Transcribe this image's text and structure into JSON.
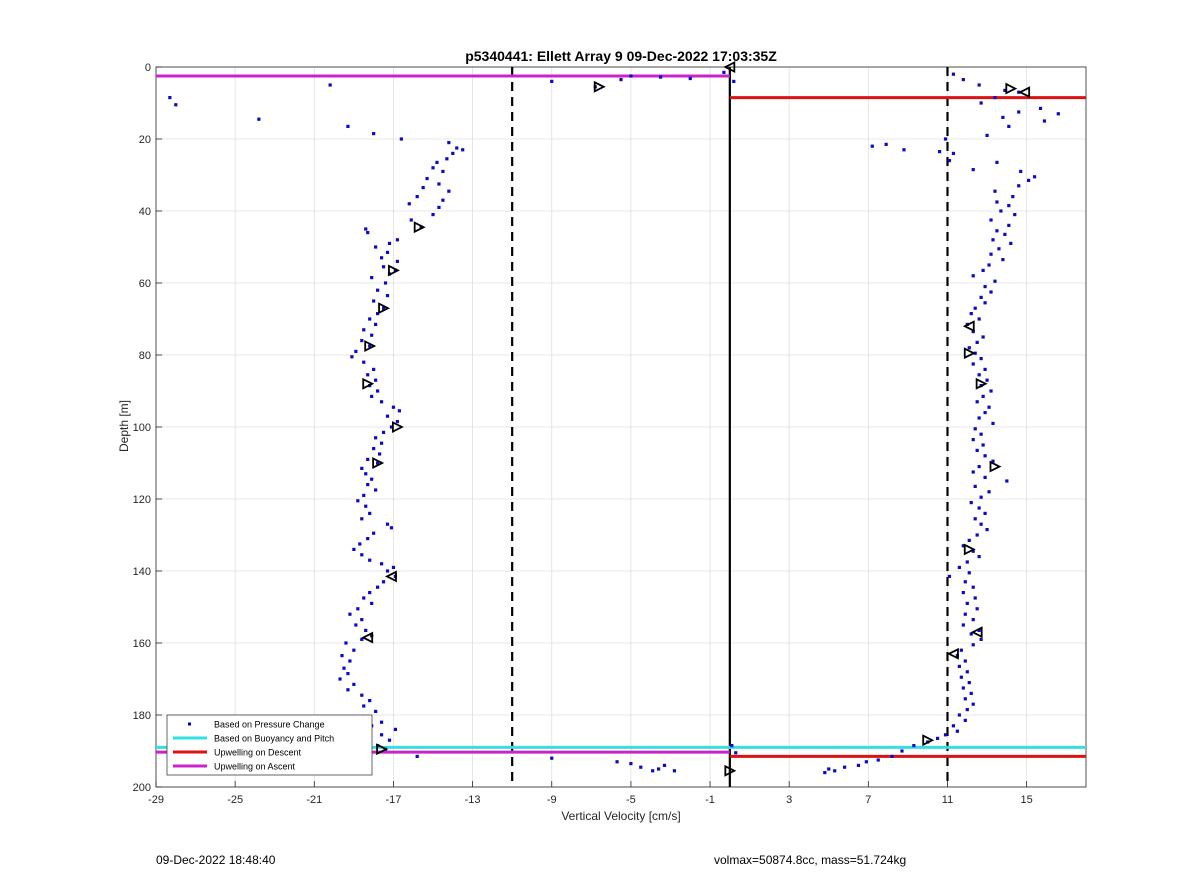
{
  "footer": {
    "timestamp": "09-Dec-2022 18:48:40",
    "info": "volmax=50874.8cc, mass=51.724kg"
  },
  "chart_data": {
    "type": "scatter",
    "title": "p5340441: Ellett Array 9 09-Dec-2022 17:03:35Z",
    "xlabel": "Vertical Velocity [cm/s]",
    "ylabel": "Depth [m]",
    "xlim": [
      -29,
      18
    ],
    "ylim": [
      0,
      200
    ],
    "y_reversed": true,
    "grid": true,
    "xticks": [
      -29,
      -25,
      -21,
      -17,
      -13,
      -9,
      -5,
      -1,
      3,
      7,
      11,
      15
    ],
    "yticks": [
      0,
      20,
      40,
      60,
      80,
      100,
      120,
      140,
      160,
      180,
      200
    ],
    "legend_position": "bottom-left",
    "legend": [
      {
        "label": "Based on Pressure Change",
        "color": "#0000cc",
        "style": "dot"
      },
      {
        "label": "Based on Buoyancy and Pitch",
        "color": "#33e0e0",
        "style": "line"
      },
      {
        "label": "Upwelling on Descent",
        "color": "#dd1111",
        "style": "line"
      },
      {
        "label": "Upwelling on Ascent",
        "color": "#cc22cc",
        "style": "line"
      }
    ],
    "vertical_lines": [
      {
        "x": 0,
        "style": "solid",
        "color": "#000000"
      },
      {
        "x": -11,
        "style": "dashed",
        "color": "#000000"
      },
      {
        "x": 11,
        "style": "dashed",
        "color": "#000000"
      }
    ],
    "horizontal_segments": [
      {
        "series": "Upwelling on Ascent",
        "y": 2.5,
        "x1": -29,
        "x2": 0,
        "color": "#cc22cc"
      },
      {
        "series": "Upwelling on Descent",
        "y": 8.5,
        "x1": 0,
        "x2": 18,
        "color": "#dd1111"
      },
      {
        "series": "Based on Buoyancy and Pitch",
        "y": 189,
        "x1": -29,
        "x2": 18,
        "color": "#33e0e0"
      },
      {
        "series": "Upwelling on Ascent",
        "y": 190.3,
        "x1": -29,
        "x2": 0,
        "color": "#cc22cc"
      },
      {
        "series": "Upwelling on Descent",
        "y": 191.5,
        "x1": 0,
        "x2": 18,
        "color": "#dd1111"
      }
    ],
    "ascent_points": [
      [
        -28.3,
        8.5
      ],
      [
        -28,
        10.5
      ],
      [
        -23.8,
        14.5
      ],
      [
        -20.2,
        5
      ],
      [
        -19.3,
        16.5
      ],
      [
        -18,
        18.5
      ],
      [
        -16.6,
        20
      ],
      [
        -9,
        4
      ],
      [
        -6.8,
        5.5
      ],
      [
        -5.5,
        3.5
      ],
      [
        -5,
        2.5
      ],
      [
        -3.5,
        2.8
      ],
      [
        -2,
        3.2
      ],
      [
        -0.3,
        1.5
      ],
      [
        -14.2,
        21
      ],
      [
        -13.8,
        22.5
      ],
      [
        -13.5,
        23
      ],
      [
        -14,
        24
      ],
      [
        -14.3,
        25.5
      ],
      [
        -14.8,
        26.5
      ],
      [
        -15,
        28
      ],
      [
        -14.5,
        29
      ],
      [
        -15.3,
        31
      ],
      [
        -14.7,
        32.5
      ],
      [
        -15.5,
        33.5
      ],
      [
        -14.2,
        34.5
      ],
      [
        -15.8,
        36
      ],
      [
        -14.5,
        37
      ],
      [
        -16.2,
        38
      ],
      [
        -14.7,
        39
      ],
      [
        -15,
        41
      ],
      [
        -16.1,
        42.5
      ],
      [
        -15.6,
        44.5
      ],
      [
        -18.4,
        45
      ],
      [
        -18.3,
        46
      ],
      [
        -16.8,
        48
      ],
      [
        -17.2,
        49
      ],
      [
        -17.9,
        50
      ],
      [
        -17.3,
        51.5
      ],
      [
        -17.6,
        53
      ],
      [
        -16.8,
        54
      ],
      [
        -17.5,
        55.5
      ],
      [
        -16.9,
        56.5
      ],
      [
        -17.2,
        57.5
      ],
      [
        -18.1,
        58.5
      ],
      [
        -17.4,
        60
      ],
      [
        -17.8,
        62
      ],
      [
        -17.3,
        63.5
      ],
      [
        -18,
        65
      ],
      [
        -17.5,
        67
      ],
      [
        -17.8,
        68.5
      ],
      [
        -18.2,
        70
      ],
      [
        -17.9,
        71.5
      ],
      [
        -18.5,
        73
      ],
      [
        -18.1,
        74.5
      ],
      [
        -18.6,
        76
      ],
      [
        -18.2,
        77.5
      ],
      [
        -18.9,
        79
      ],
      [
        -19.1,
        80.5
      ],
      [
        -18.5,
        82
      ],
      [
        -18,
        84
      ],
      [
        -18.3,
        85.5
      ],
      [
        -17.9,
        87
      ],
      [
        -18.2,
        88.5
      ],
      [
        -17.8,
        90
      ],
      [
        -18.1,
        91.5
      ],
      [
        -17.6,
        93
      ],
      [
        -17,
        94.5
      ],
      [
        -16.7,
        95.5
      ],
      [
        -17.3,
        97
      ],
      [
        -16.8,
        98.5
      ],
      [
        -17.1,
        100
      ],
      [
        -17.5,
        101.5
      ],
      [
        -17.9,
        103
      ],
      [
        -17.6,
        104.5
      ],
      [
        -18,
        106
      ],
      [
        -17.7,
        107.5
      ],
      [
        -18.3,
        109
      ],
      [
        -17.8,
        110
      ],
      [
        -18.6,
        111.5
      ],
      [
        -18.4,
        113
      ],
      [
        -18.1,
        114.5
      ],
      [
        -18.3,
        116
      ],
      [
        -17.9,
        117.5
      ],
      [
        -18.5,
        119
      ],
      [
        -18.8,
        120.5
      ],
      [
        -18.4,
        122
      ],
      [
        -18.2,
        124
      ],
      [
        -18.6,
        125.5
      ],
      [
        -17.3,
        127
      ],
      [
        -17.1,
        128
      ],
      [
        -18,
        129.5
      ],
      [
        -18.3,
        131
      ],
      [
        -18.7,
        132.5
      ],
      [
        -19,
        134
      ],
      [
        -18.6,
        135.5
      ],
      [
        -18.2,
        137
      ],
      [
        -17.6,
        138
      ],
      [
        -17,
        139
      ],
      [
        -17.3,
        140
      ],
      [
        -16.9,
        141.5
      ],
      [
        -17.5,
        143
      ],
      [
        -17.8,
        144.5
      ],
      [
        -18.2,
        146
      ],
      [
        -18.5,
        147.5
      ],
      [
        -18.1,
        149
      ],
      [
        -18.8,
        150.5
      ],
      [
        -19.2,
        152
      ],
      [
        -18.6,
        153.5
      ],
      [
        -18.9,
        155
      ],
      [
        -18.4,
        156.5
      ],
      [
        -18.1,
        158
      ],
      [
        -18.6,
        159
      ],
      [
        -19.4,
        160
      ],
      [
        -19,
        162
      ],
      [
        -19.6,
        163.5
      ],
      [
        -19.2,
        165
      ],
      [
        -19.5,
        167
      ],
      [
        -19.3,
        168.5
      ],
      [
        -19.7,
        170
      ],
      [
        -19,
        171.5
      ],
      [
        -19.3,
        173
      ],
      [
        -18.6,
        174.5
      ],
      [
        -18.2,
        176
      ],
      [
        -18.5,
        177.5
      ],
      [
        -17.9,
        179
      ],
      [
        -18.2,
        180.5
      ],
      [
        -17.6,
        182
      ],
      [
        -18.1,
        183
      ],
      [
        -16.9,
        184
      ],
      [
        -17.6,
        185.5
      ],
      [
        -17.2,
        187
      ],
      [
        -17.8,
        188.5
      ],
      [
        -17.4,
        189.5
      ],
      [
        -15.8,
        191.5
      ],
      [
        -9,
        192
      ],
      [
        -5.7,
        193
      ],
      [
        -5,
        193.5
      ],
      [
        -4.5,
        194.5
      ],
      [
        -3.6,
        195
      ],
      [
        -3.9,
        195.5
      ],
      [
        -2.8,
        195.5
      ],
      [
        -3.3,
        194
      ]
    ],
    "descent_points": [
      [
        11.3,
        2
      ],
      [
        11.8,
        3.5
      ],
      [
        12.6,
        5
      ],
      [
        13.9,
        6.5
      ],
      [
        14.6,
        7
      ],
      [
        13.4,
        8.5
      ],
      [
        12.7,
        10
      ],
      [
        15.7,
        11.5
      ],
      [
        14.6,
        12.5
      ],
      [
        16.6,
        13
      ],
      [
        13.8,
        14
      ],
      [
        15.9,
        15
      ],
      [
        14.1,
        16.5
      ],
      [
        13,
        19
      ],
      [
        10.9,
        20
      ],
      [
        7.9,
        21.5
      ],
      [
        7.2,
        22
      ],
      [
        8.8,
        23
      ],
      [
        10.6,
        23.5
      ],
      [
        11.3,
        24
      ],
      [
        11.1,
        26
      ],
      [
        13.5,
        26.5
      ],
      [
        12.3,
        28.5
      ],
      [
        14.7,
        29
      ],
      [
        15.4,
        30.5
      ],
      [
        15.1,
        31.5
      ],
      [
        14.6,
        33
      ],
      [
        13.4,
        34.5
      ],
      [
        14.3,
        36
      ],
      [
        13.5,
        37.5
      ],
      [
        14.1,
        38.5
      ],
      [
        13.7,
        40
      ],
      [
        14.4,
        41
      ],
      [
        13.2,
        42.5
      ],
      [
        14.1,
        44
      ],
      [
        13.5,
        45.5
      ],
      [
        13.9,
        46.5
      ],
      [
        13.3,
        48
      ],
      [
        14.2,
        49
      ],
      [
        13.6,
        50.5
      ],
      [
        13.2,
        52
      ],
      [
        13.8,
        53.5
      ],
      [
        13.1,
        55
      ],
      [
        12.8,
        56.5
      ],
      [
        12.3,
        58
      ],
      [
        13.4,
        59.5
      ],
      [
        12.9,
        61
      ],
      [
        13.2,
        62.5
      ],
      [
        12.7,
        64
      ],
      [
        12.9,
        65.5
      ],
      [
        12.4,
        67
      ],
      [
        12.2,
        68.5
      ],
      [
        12.6,
        70
      ],
      [
        12,
        71.5
      ],
      [
        12.3,
        73.5
      ],
      [
        12.8,
        75
      ],
      [
        12.5,
        76.5
      ],
      [
        12.1,
        78
      ],
      [
        12.4,
        79.5
      ],
      [
        12.7,
        81
      ],
      [
        12.3,
        82.5
      ],
      [
        12.9,
        84
      ],
      [
        12.6,
        85.5
      ],
      [
        13,
        87
      ],
      [
        12.7,
        88.5
      ],
      [
        13.2,
        90
      ],
      [
        12.8,
        91.5
      ],
      [
        12.5,
        93
      ],
      [
        13.1,
        94.5
      ],
      [
        12.9,
        96
      ],
      [
        12.6,
        97.5
      ],
      [
        13.3,
        99
      ],
      [
        12.4,
        100.5
      ],
      [
        12.7,
        102
      ],
      [
        12.3,
        103.5
      ],
      [
        12.8,
        105
      ],
      [
        12.5,
        106.5
      ],
      [
        12.9,
        108
      ],
      [
        13.3,
        109.5
      ],
      [
        12.6,
        111
      ],
      [
        12.3,
        112.5
      ],
      [
        12.9,
        114
      ],
      [
        14,
        115
      ],
      [
        12.4,
        116.5
      ],
      [
        13.1,
        118
      ],
      [
        12.7,
        119.5
      ],
      [
        12.2,
        121
      ],
      [
        12.6,
        122.5
      ],
      [
        12.9,
        124
      ],
      [
        12.4,
        125.5
      ],
      [
        12.7,
        127
      ],
      [
        13,
        128.5
      ],
      [
        12.5,
        130
      ],
      [
        12.1,
        131.5
      ],
      [
        11.8,
        133
      ],
      [
        12.3,
        134.5
      ],
      [
        12.6,
        136
      ],
      [
        12,
        137.5
      ],
      [
        11.6,
        139
      ],
      [
        12.1,
        140.5
      ],
      [
        11.1,
        141.5
      ],
      [
        11.9,
        143
      ],
      [
        12.3,
        144.5
      ],
      [
        11.8,
        146
      ],
      [
        12.4,
        147.5
      ],
      [
        12,
        149
      ],
      [
        12.5,
        150.5
      ],
      [
        11.9,
        152
      ],
      [
        12.3,
        153.5
      ],
      [
        11.8,
        155
      ],
      [
        12.6,
        156.5
      ],
      [
        12.2,
        157.5
      ],
      [
        12.7,
        159
      ],
      [
        12.3,
        160.5
      ],
      [
        11.7,
        162
      ],
      [
        11.5,
        163.5
      ],
      [
        11.9,
        165
      ],
      [
        11.6,
        166.5
      ],
      [
        12,
        168
      ],
      [
        11.7,
        169.5
      ],
      [
        12.1,
        171
      ],
      [
        11.8,
        172.5
      ],
      [
        12.2,
        174
      ],
      [
        11.9,
        175.5
      ],
      [
        12.3,
        177
      ],
      [
        12,
        178.5
      ],
      [
        11.6,
        180
      ],
      [
        11.9,
        181.5
      ],
      [
        11.3,
        183
      ],
      [
        11.5,
        184.5
      ],
      [
        10.9,
        185.5
      ],
      [
        10.5,
        186.5
      ],
      [
        10,
        187.5
      ],
      [
        9.3,
        188.5
      ],
      [
        8.7,
        190
      ],
      [
        8.2,
        191.5
      ],
      [
        7.5,
        192.5
      ],
      [
        6.9,
        193
      ],
      [
        6.5,
        194
      ],
      [
        5.8,
        194.5
      ],
      [
        5.3,
        195.5
      ],
      [
        5,
        195
      ],
      [
        4.8,
        196
      ],
      [
        0.3,
        190.5
      ],
      [
        0.1,
        188.5
      ],
      [
        0.2,
        4
      ]
    ],
    "triangles": [
      {
        "x": 0,
        "y": 0,
        "dir": "left"
      },
      {
        "x": -6.6,
        "y": 5.5,
        "dir": "right"
      },
      {
        "x": -15.7,
        "y": 44.5,
        "dir": "right"
      },
      {
        "x": -17,
        "y": 56.5,
        "dir": "right"
      },
      {
        "x": -17.5,
        "y": 67,
        "dir": "right"
      },
      {
        "x": -18.2,
        "y": 77.5,
        "dir": "right"
      },
      {
        "x": -18.3,
        "y": 88,
        "dir": "right"
      },
      {
        "x": -16.8,
        "y": 100,
        "dir": "right"
      },
      {
        "x": -17.8,
        "y": 110,
        "dir": "right"
      },
      {
        "x": -17.1,
        "y": 141.5,
        "dir": "left"
      },
      {
        "x": -18.3,
        "y": 158.5,
        "dir": "left"
      },
      {
        "x": -17.6,
        "y": 189.5,
        "dir": "right"
      },
      {
        "x": 14.2,
        "y": 6,
        "dir": "right"
      },
      {
        "x": 14.9,
        "y": 7,
        "dir": "left"
      },
      {
        "x": 12.1,
        "y": 72,
        "dir": "left"
      },
      {
        "x": 12.1,
        "y": 79.5,
        "dir": "right"
      },
      {
        "x": 12.7,
        "y": 88,
        "dir": "right"
      },
      {
        "x": 13.4,
        "y": 111,
        "dir": "right"
      },
      {
        "x": 12.1,
        "y": 134,
        "dir": "right"
      },
      {
        "x": 12.5,
        "y": 157,
        "dir": "left"
      },
      {
        "x": 11.3,
        "y": 163,
        "dir": "left"
      },
      {
        "x": 10,
        "y": 187,
        "dir": "right"
      },
      {
        "x": 0,
        "y": 195.5,
        "dir": "right"
      }
    ]
  }
}
